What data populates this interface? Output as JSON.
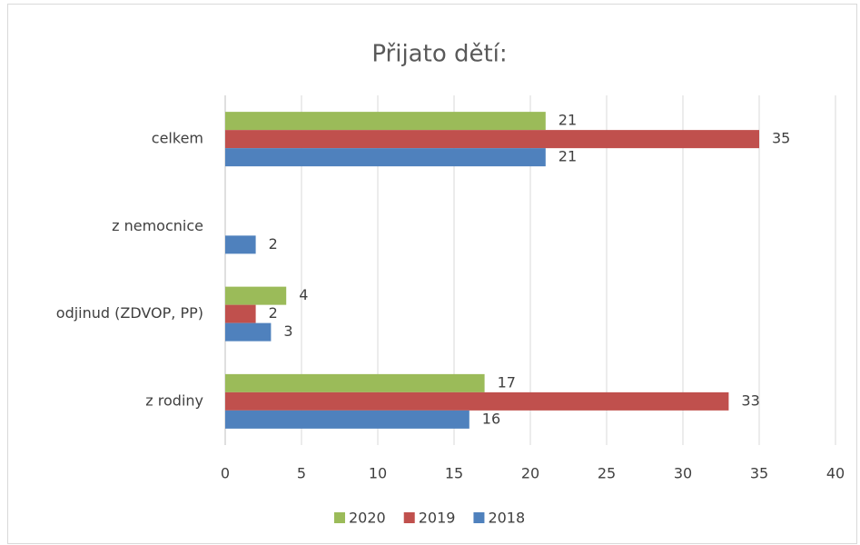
{
  "chart_data": {
    "type": "hbar",
    "title": "Přijato dětí:",
    "categories": [
      "celkem",
      "z nemocnice",
      "odjinud (ZDVOP, PP)",
      "z rodiny"
    ],
    "series": [
      {
        "name": "2020",
        "color": "#9bbb59",
        "values": [
          21,
          null,
          4,
          17
        ]
      },
      {
        "name": "2019",
        "color": "#c0504d",
        "values": [
          35,
          null,
          2,
          33
        ]
      },
      {
        "name": "2018",
        "color": "#4f81bd",
        "values": [
          21,
          2,
          3,
          16
        ]
      }
    ],
    "xlim": [
      0,
      40
    ],
    "xticks": [
      0,
      5,
      10,
      15,
      20,
      25,
      30,
      35,
      40
    ],
    "grid": true,
    "legend": "bottom"
  }
}
